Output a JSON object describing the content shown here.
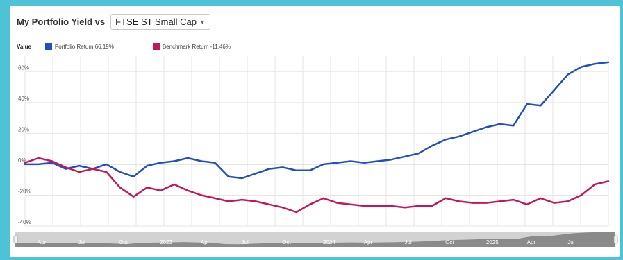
{
  "header": {
    "title": "My Portfolio Yield vs",
    "benchmark_select": "FTSE ST Small Cap"
  },
  "legend": {
    "label": "Value",
    "items": [
      {
        "name": "Portfolio Return 66.19%",
        "color": "#1f4fc1"
      },
      {
        "name": "Benchmark Return -11.46%",
        "color": "#c2185b"
      }
    ]
  },
  "colors": {
    "portfolio": "#1f4fc1",
    "benchmark": "#c2185b",
    "grid": "#e6e6e6",
    "navigator_fill": "#8a8a8a",
    "navigator_bg": "#d2d2d2"
  },
  "chart_data": {
    "type": "line",
    "title": "",
    "xlabel": "",
    "ylabel": "",
    "ylim": [
      -40,
      70
    ],
    "yticks": [
      60,
      40,
      20,
      0,
      -20,
      -40
    ],
    "ytick_labels": [
      "60%",
      "40%",
      "20%",
      "0%",
      "-20%",
      "-40%"
    ],
    "grid": true,
    "legend_position": "top-left",
    "navigator_labels": [
      "Apr",
      "Jul",
      "Oct",
      "2023",
      "Apr",
      "Jul",
      "Oct",
      "2024",
      "Apr",
      "Jul",
      "Oct",
      "2025",
      "Apr",
      "Jul"
    ],
    "series": [
      {
        "name": "Portfolio Return 66.19%",
        "color": "#1f4fc1",
        "x": [
          0,
          1,
          2,
          3,
          4,
          5,
          6,
          7,
          8,
          9,
          10,
          11,
          12,
          13,
          14,
          15,
          16,
          17,
          18,
          19,
          20,
          21,
          22,
          23,
          24,
          25,
          26,
          27,
          28,
          29,
          30,
          31,
          32,
          33,
          34,
          35,
          36,
          37,
          38,
          39,
          40,
          41,
          42,
          43
        ],
        "values": [
          0,
          0,
          1,
          -3,
          -1,
          -3,
          0,
          -5,
          -8,
          -1,
          1,
          2,
          4,
          2,
          1,
          -8,
          -9,
          -6,
          -3,
          -2,
          -4,
          -4,
          0,
          1,
          2,
          1,
          2,
          3,
          5,
          7,
          12,
          16,
          18,
          21,
          24,
          26,
          25,
          39,
          38,
          48,
          58,
          63,
          65,
          66
        ]
      },
      {
        "name": "Benchmark Return -11.46%",
        "color": "#c2185b",
        "x": [
          0,
          1,
          2,
          3,
          4,
          5,
          6,
          7,
          8,
          9,
          10,
          11,
          12,
          13,
          14,
          15,
          16,
          17,
          18,
          19,
          20,
          21,
          22,
          23,
          24,
          25,
          26,
          27,
          28,
          29,
          30,
          31,
          32,
          33,
          34,
          35,
          36,
          37,
          38,
          39,
          40,
          41,
          42,
          43
        ],
        "values": [
          1,
          4,
          2,
          -2,
          -5,
          -3,
          -5,
          -15,
          -21,
          -15,
          -17,
          -13,
          -17,
          -20,
          -22,
          -24,
          -23,
          -24,
          -26,
          -28,
          -31,
          -26,
          -22,
          -25,
          -26,
          -27,
          -27,
          -27,
          -28,
          -27,
          -27,
          -22,
          -24,
          -25,
          -25,
          -24,
          -23,
          -26,
          -22,
          -25,
          -24,
          -20,
          -13,
          -11
        ]
      }
    ]
  }
}
